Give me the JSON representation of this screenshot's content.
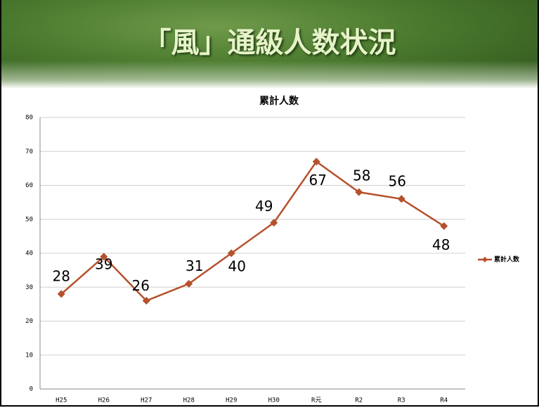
{
  "header": {
    "title": "「風」通級人数状況"
  },
  "chart_data": {
    "type": "line",
    "title": "累計人数",
    "categories": [
      "H25",
      "H26",
      "H27",
      "H28",
      "H29",
      "H30",
      "R元",
      "R2",
      "R3",
      "R4"
    ],
    "series": [
      {
        "name": "累計人数",
        "color": "#b5512d",
        "values": [
          28,
          39,
          26,
          31,
          40,
          49,
          67,
          58,
          56,
          48
        ]
      }
    ],
    "ylim": [
      0,
      80
    ],
    "yticks": [
      0,
      10,
      20,
      30,
      40,
      50,
      60,
      70,
      80
    ],
    "grid": true,
    "legend": "right"
  }
}
